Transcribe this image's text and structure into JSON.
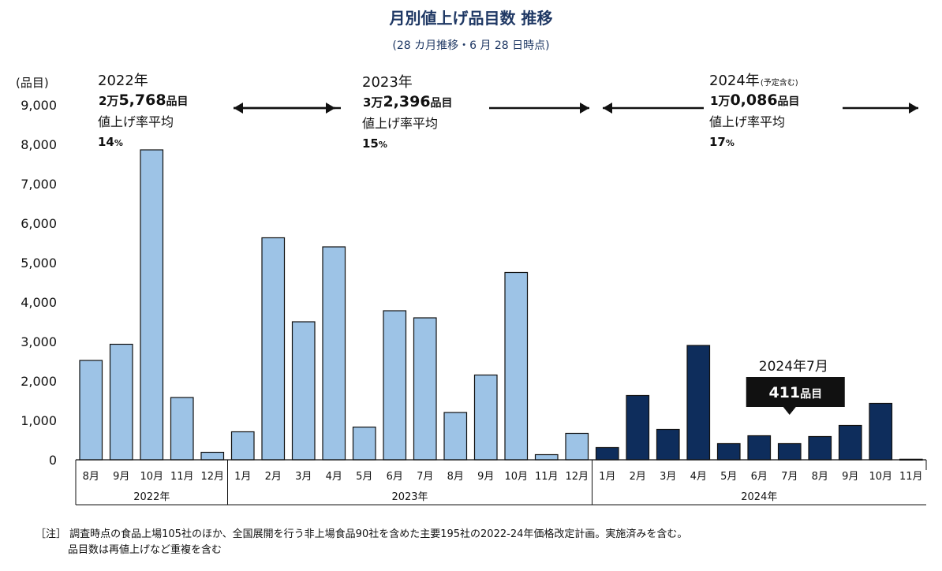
{
  "chart_data": {
    "type": "bar",
    "title": "月別値上げ品目数 推移",
    "subtitle": "(28 カ月推移・6 月 28 日時点)",
    "ylabel": "(品目)",
    "ylim": [
      0,
      9000
    ],
    "yticks": [
      "0",
      "1,000",
      "2,000",
      "3,000",
      "4,000",
      "5,000",
      "6,000",
      "7,000",
      "8,000",
      "9,000"
    ],
    "categories": [
      "8月",
      "9月",
      "10月",
      "11月",
      "12月",
      "1月",
      "2月",
      "3月",
      "4月",
      "5月",
      "6月",
      "7月",
      "8月",
      "9月",
      "10月",
      "11月",
      "12月",
      "1月",
      "2月",
      "3月",
      "4月",
      "5月",
      "6月",
      "7月",
      "8月",
      "9月",
      "10月",
      "11月"
    ],
    "values": [
      2520,
      2930,
      7860,
      1580,
      190,
      710,
      5630,
      3500,
      5400,
      830,
      3780,
      3600,
      1200,
      2150,
      4750,
      130,
      670,
      310,
      1630,
      770,
      2900,
      410,
      610,
      411,
      590,
      870,
      1430,
      15
    ],
    "year_groups": [
      {
        "label": "2022年",
        "count": 5,
        "color": "#9dc3e6"
      },
      {
        "label": "2023年",
        "count": 12,
        "color": "#9dc3e6"
      },
      {
        "label": "2024年",
        "count": 11,
        "color": "#0e2d5c"
      }
    ],
    "annotations": [
      {
        "year": "2022年",
        "year_note": "",
        "total_prefix": "2万",
        "total_num": "5,768",
        "total_unit": "品目",
        "rate_label": "値上げ率平均",
        "rate_num": "14",
        "rate_unit": "%"
      },
      {
        "year": "2023年",
        "year_note": "",
        "total_prefix": "3万",
        "total_num": "2,396",
        "total_unit": "品目",
        "rate_label": "値上げ率平均",
        "rate_num": "15",
        "rate_unit": "%"
      },
      {
        "year": "2024年",
        "year_note": "(予定含む)",
        "total_prefix": "1万",
        "total_num": "0,086",
        "total_unit": "品目",
        "rate_label": "値上げ率平均",
        "rate_num": "17",
        "rate_unit": "%"
      }
    ],
    "callout": {
      "label": "2024年7月",
      "value": "411",
      "unit": "品目"
    },
    "grid": false
  },
  "footnote": {
    "line1": "［注］ 調査時点の食品上場105社のほか、全国展開を行う非上場食品90社を含めた主要195社の2022-24年価格改定計画。実施済みを含む。",
    "line2": "品目数は再値上げなど重複を含む"
  }
}
